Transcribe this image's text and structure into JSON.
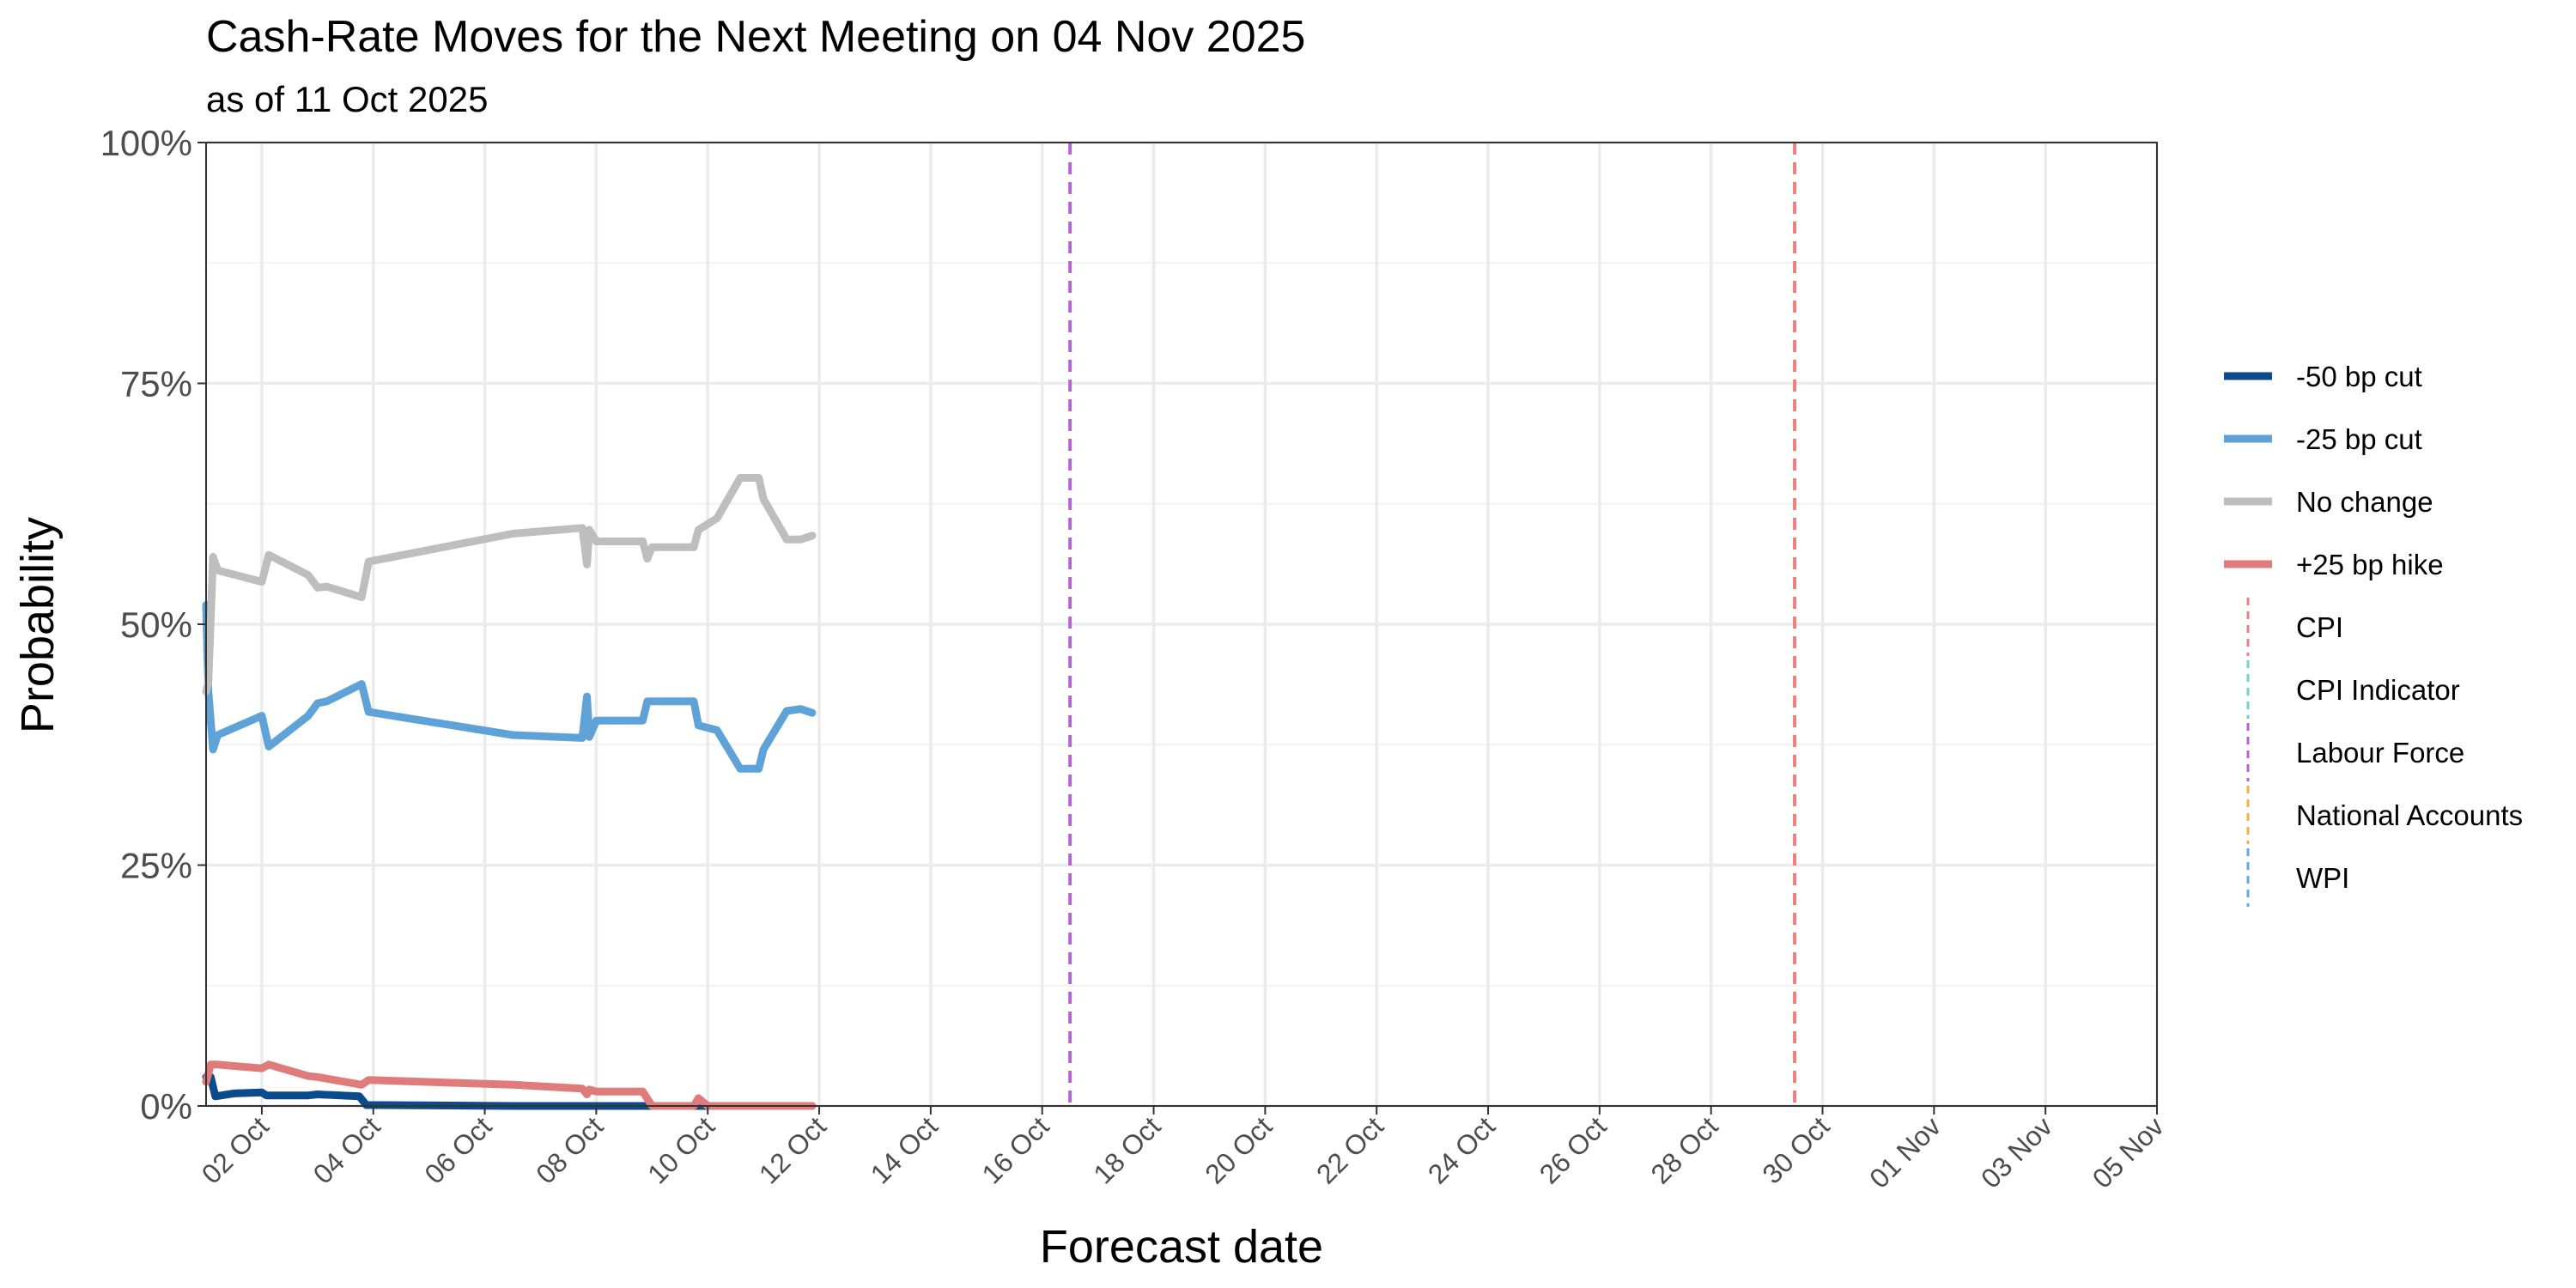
{
  "chart_data": {
    "type": "line",
    "title": "Cash-Rate Moves for the Next Meeting on 04 Nov 2025",
    "subtitle": "as of 11 Oct 2025",
    "xlabel": "Forecast date",
    "ylabel": "Probability",
    "x_range": [
      "2025-10-01",
      "2025-11-05"
    ],
    "ylim": [
      0,
      1
    ],
    "y_ticks": [
      0,
      0.25,
      0.5,
      0.75,
      1
    ],
    "y_tick_labels": [
      "0%",
      "25%",
      "50%",
      "75%",
      "100%"
    ],
    "x_ticks": [
      "2025-10-02",
      "2025-10-04",
      "2025-10-06",
      "2025-10-08",
      "2025-10-10",
      "2025-10-12",
      "2025-10-14",
      "2025-10-16",
      "2025-10-18",
      "2025-10-20",
      "2025-10-22",
      "2025-10-24",
      "2025-10-26",
      "2025-10-28",
      "2025-10-30",
      "2025-11-01",
      "2025-11-03",
      "2025-11-05"
    ],
    "x_tick_labels": [
      "02 Oct",
      "04 Oct",
      "06 Oct",
      "08 Oct",
      "10 Oct",
      "12 Oct",
      "14 Oct",
      "16 Oct",
      "18 Oct",
      "20 Oct",
      "22 Oct",
      "24 Oct",
      "26 Oct",
      "28 Oct",
      "30 Oct",
      "01 Nov",
      "03 Nov",
      "05 Nov"
    ],
    "grid": true,
    "legend_position": "right",
    "series": [
      {
        "name": "-50 bp cut",
        "color": "#0b4a8b",
        "points": [
          [
            "2025-10-01T00:00",
            0.03
          ],
          [
            "2025-10-01T02:00",
            0.03
          ],
          [
            "2025-10-01T04:00",
            0.01
          ],
          [
            "2025-10-01T12:00",
            0.013
          ],
          [
            "2025-10-02T00:00",
            0.014
          ],
          [
            "2025-10-02T02:00",
            0.011
          ],
          [
            "2025-10-02T20:00",
            0.011
          ],
          [
            "2025-10-03T00:00",
            0.012
          ],
          [
            "2025-10-03T18:00",
            0.01
          ],
          [
            "2025-10-03T21:00",
            0.001
          ],
          [
            "2025-10-06T12:00",
            0.0
          ],
          [
            "2025-10-11T21:00",
            0.0
          ]
        ]
      },
      {
        "name": "-25 bp cut",
        "color": "#5fa2d8",
        "points": [
          [
            "2025-10-01T00:00",
            0.52
          ],
          [
            "2025-10-01T01:00",
            0.43
          ],
          [
            "2025-10-01T03:00",
            0.37
          ],
          [
            "2025-10-01T05:00",
            0.385
          ],
          [
            "2025-10-02T00:00",
            0.405
          ],
          [
            "2025-10-02T03:00",
            0.373
          ],
          [
            "2025-10-02T20:00",
            0.405
          ],
          [
            "2025-10-03T00:00",
            0.418
          ],
          [
            "2025-10-03T04:00",
            0.42
          ],
          [
            "2025-10-03T19:00",
            0.438
          ],
          [
            "2025-10-03T22:00",
            0.409
          ],
          [
            "2025-10-06T12:00",
            0.385
          ],
          [
            "2025-10-07T18:00",
            0.382
          ],
          [
            "2025-10-07T20:00",
            0.425
          ],
          [
            "2025-10-07T21:00",
            0.383
          ],
          [
            "2025-10-08T00:00",
            0.4
          ],
          [
            "2025-10-08T20:00",
            0.4
          ],
          [
            "2025-10-08T22:00",
            0.42
          ],
          [
            "2025-10-09T18:00",
            0.42
          ],
          [
            "2025-10-09T20:00",
            0.395
          ],
          [
            "2025-10-10T04:00",
            0.39
          ],
          [
            "2025-10-10T14:00",
            0.35
          ],
          [
            "2025-10-10T22:00",
            0.35
          ],
          [
            "2025-10-11T00:00",
            0.37
          ],
          [
            "2025-10-11T10:00",
            0.41
          ],
          [
            "2025-10-11T16:00",
            0.412
          ],
          [
            "2025-10-11T21:00",
            0.408
          ]
        ]
      },
      {
        "name": "No change",
        "color": "#bebebe",
        "points": [
          [
            "2025-10-01T00:00",
            0.43
          ],
          [
            "2025-10-01T01:00",
            0.44
          ],
          [
            "2025-10-01T03:00",
            0.57
          ],
          [
            "2025-10-01T05:00",
            0.556
          ],
          [
            "2025-10-02T00:00",
            0.544
          ],
          [
            "2025-10-02T03:00",
            0.572
          ],
          [
            "2025-10-02T20:00",
            0.551
          ],
          [
            "2025-10-03T00:00",
            0.538
          ],
          [
            "2025-10-03T04:00",
            0.539
          ],
          [
            "2025-10-03T19:00",
            0.528
          ],
          [
            "2025-10-03T22:00",
            0.565
          ],
          [
            "2025-10-06T12:00",
            0.594
          ],
          [
            "2025-10-07T18:00",
            0.6
          ],
          [
            "2025-10-07T20:00",
            0.562
          ],
          [
            "2025-10-07T21:00",
            0.598
          ],
          [
            "2025-10-08T00:00",
            0.586
          ],
          [
            "2025-10-08T20:00",
            0.586
          ],
          [
            "2025-10-08T22:00",
            0.568
          ],
          [
            "2025-10-09T00:00",
            0.58
          ],
          [
            "2025-10-09T18:00",
            0.58
          ],
          [
            "2025-10-09T20:00",
            0.598
          ],
          [
            "2025-10-10T04:00",
            0.61
          ],
          [
            "2025-10-10T14:00",
            0.652
          ],
          [
            "2025-10-10T22:00",
            0.652
          ],
          [
            "2025-10-11T00:00",
            0.63
          ],
          [
            "2025-10-11T10:00",
            0.588
          ],
          [
            "2025-10-11T16:00",
            0.588
          ],
          [
            "2025-10-11T21:00",
            0.592
          ]
        ]
      },
      {
        "name": "+25 bp hike",
        "color": "#e07b7b",
        "points": [
          [
            "2025-10-01T00:00",
            0.025
          ],
          [
            "2025-10-01T02:00",
            0.043
          ],
          [
            "2025-10-01T05:00",
            0.043
          ],
          [
            "2025-10-02T00:00",
            0.039
          ],
          [
            "2025-10-02T03:00",
            0.043
          ],
          [
            "2025-10-02T20:00",
            0.031
          ],
          [
            "2025-10-03T00:00",
            0.03
          ],
          [
            "2025-10-03T19:00",
            0.022
          ],
          [
            "2025-10-03T22:00",
            0.027
          ],
          [
            "2025-10-06T12:00",
            0.022
          ],
          [
            "2025-10-07T18:00",
            0.018
          ],
          [
            "2025-10-07T20:00",
            0.012
          ],
          [
            "2025-10-07T21:00",
            0.017
          ],
          [
            "2025-10-08T00:00",
            0.015
          ],
          [
            "2025-10-08T20:00",
            0.015
          ],
          [
            "2025-10-09T00:00",
            0.0
          ],
          [
            "2025-10-09T18:00",
            0.0
          ],
          [
            "2025-10-09T20:00",
            0.008
          ],
          [
            "2025-10-10T00:00",
            0.0
          ],
          [
            "2025-10-11T21:00",
            0.0
          ]
        ]
      }
    ],
    "events": [
      {
        "name": "CPI",
        "color": "#f08080",
        "dates": [
          "2025-10-29T12:00"
        ]
      },
      {
        "name": "CPI Indicator",
        "color": "#6fd3d3",
        "dates": []
      },
      {
        "name": "Labour Force",
        "color": "#b565d0",
        "dates": [
          "2025-10-16T12:00"
        ]
      },
      {
        "name": "National Accounts",
        "color": "#f5b041",
        "dates": []
      },
      {
        "name": "WPI",
        "color": "#5dade2",
        "dates": []
      }
    ]
  }
}
